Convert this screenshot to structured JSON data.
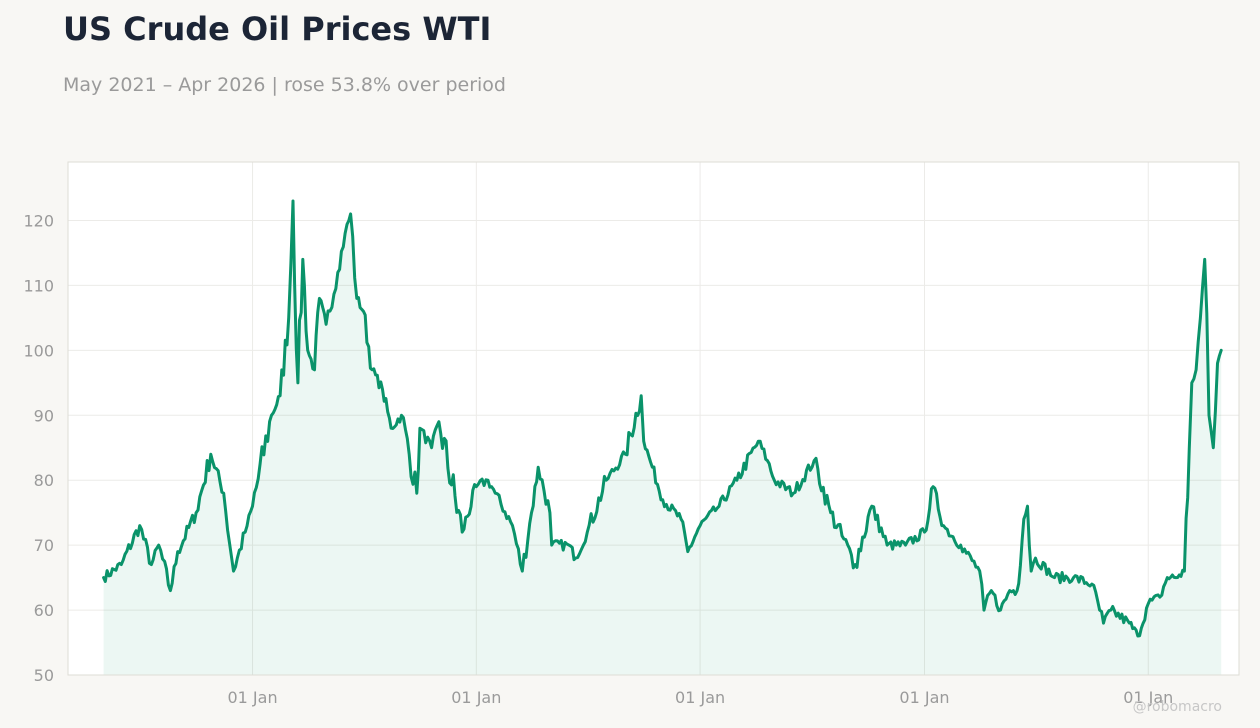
{
  "header": {
    "title": "US Crude Oil Prices WTI",
    "subtitle": "May 2021 – Apr 2026 | rose 53.8% over period"
  },
  "watermark": "@robomacro",
  "colors": {
    "line": "#0a936a",
    "fill": "#0a936a",
    "grid": "#ecebe8",
    "plot_bg": "#ffffff",
    "border": "#dedcd6",
    "text_muted": "#9a9a9a"
  },
  "chart_data": {
    "type": "area",
    "title": "US Crude Oil Prices WTI",
    "subtitle": "May 2021 – Apr 2026 | rose 53.8% over period",
    "xlabel": "",
    "ylabel": "",
    "xlim": [
      "2021-03-06",
      "2026-05-29"
    ],
    "ylim": [
      50,
      129
    ],
    "y_ticks": [
      50,
      60,
      70,
      80,
      90,
      100,
      110,
      120
    ],
    "x_ticks": [
      {
        "date": "2022-01-01",
        "label": "01 Jan"
      },
      {
        "date": "2023-01-01",
        "label": "01 Jan"
      },
      {
        "date": "2024-01-01",
        "label": "01 Jan"
      },
      {
        "date": "2025-01-01",
        "label": "01 Jan"
      },
      {
        "date": "2026-01-01",
        "label": "01 Jan"
      }
    ],
    "grid": true,
    "legend": "none",
    "series": [
      {
        "x": [
          "2021-05-03",
          "2021-06-01",
          "2021-07-01",
          "2021-07-20",
          "2021-08-01",
          "2021-08-20",
          "2021-09-01",
          "2021-10-01",
          "2021-10-25",
          "2021-11-15",
          "2021-12-01",
          "2021-12-20",
          "2022-01-01",
          "2022-02-01",
          "2022-02-15",
          "2022-03-01",
          "2022-03-08",
          "2022-03-16",
          "2022-03-24",
          "2022-04-01",
          "2022-04-12",
          "2022-04-20",
          "2022-05-01",
          "2022-05-20",
          "2022-06-01",
          "2022-06-10",
          "2022-06-20",
          "2022-07-01",
          "2022-07-15",
          "2022-08-01",
          "2022-08-15",
          "2022-09-01",
          "2022-09-26",
          "2022-10-01",
          "2022-10-20",
          "2022-11-01",
          "2022-12-09",
          "2023-01-01",
          "2023-01-20",
          "2023-02-01",
          "2023-03-01",
          "2023-03-17",
          "2023-04-01",
          "2023-04-12",
          "2023-05-01",
          "2023-05-04",
          "2023-06-01",
          "2023-06-12",
          "2023-07-01",
          "2023-08-01",
          "2023-09-01",
          "2023-09-27",
          "2023-10-01",
          "2023-10-15",
          "2023-11-01",
          "2023-12-01",
          "2023-12-12",
          "2024-01-01",
          "2024-02-01",
          "2024-03-01",
          "2024-04-05",
          "2024-04-20",
          "2024-05-01",
          "2024-06-01",
          "2024-07-05",
          "2024-08-01",
          "2024-09-10",
          "2024-10-07",
          "2024-11-01",
          "2024-12-01",
          "2025-01-01",
          "2025-01-15",
          "2025-02-01",
          "2025-03-01",
          "2025-04-01",
          "2025-04-08",
          "2025-04-20",
          "2025-05-05",
          "2025-05-20",
          "2025-06-01",
          "2025-06-12",
          "2025-06-18",
          "2025-06-24",
          "2025-07-01",
          "2025-08-01",
          "2025-09-01",
          "2025-10-01",
          "2025-10-20",
          "2025-11-01",
          "2025-12-01",
          "2025-12-15",
          "2026-01-01",
          "2026-01-20",
          "2026-02-01",
          "2026-02-15",
          "2026-03-01",
          "2026-03-09",
          "2026-03-13",
          "2026-03-20",
          "2026-03-27",
          "2026-04-03",
          "2026-04-10",
          "2026-04-17",
          "2026-04-24",
          "2026-04-30"
        ],
        "values": [
          65,
          67,
          73,
          67,
          70,
          63,
          69,
          75,
          84,
          78,
          66,
          72,
          76,
          90,
          93,
          105,
          123,
          95,
          114,
          100,
          97,
          108,
          104,
          112,
          118,
          121,
          108,
          106,
          97,
          94,
          88,
          90,
          78,
          88,
          85,
          89,
          72,
          79,
          80,
          78,
          73,
          66,
          75,
          82,
          75,
          70,
          70,
          68,
          72,
          80,
          84,
          93,
          86,
          82,
          77,
          74,
          69,
          73,
          76,
          80,
          86,
          83,
          80,
          78,
          83,
          75,
          67,
          76,
          70,
          70,
          72,
          79,
          73,
          70,
          66,
          60,
          63,
          60,
          63,
          63,
          74,
          76,
          66,
          68,
          65,
          65,
          64,
          58,
          60,
          58,
          56,
          61,
          62,
          65,
          65,
          66,
          85,
          95,
          97,
          105,
          114,
          90,
          85,
          98,
          100
        ]
      }
    ]
  }
}
